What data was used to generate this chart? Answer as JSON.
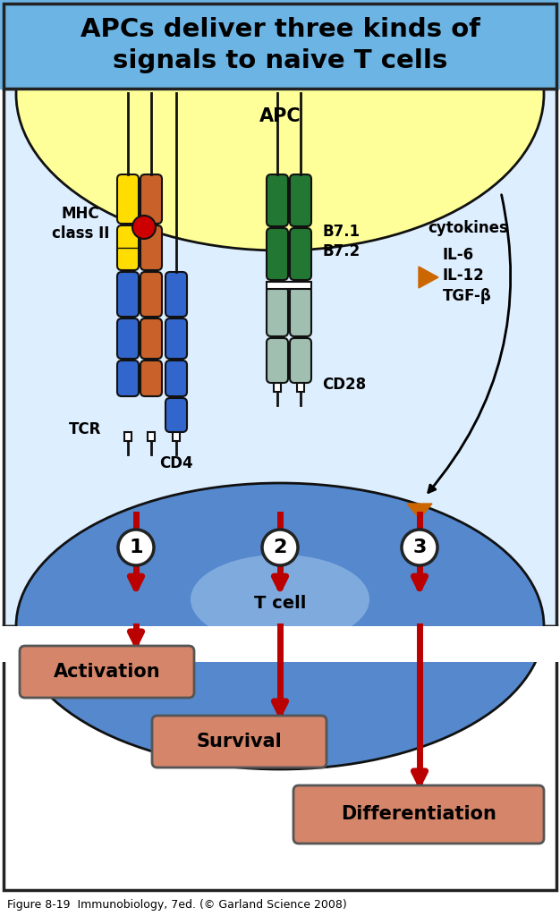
{
  "title_line1": "APCs deliver three kinds of",
  "title_line2": "signals to naive T cells",
  "title_bg": "#6cb4e4",
  "title_fontsize": 21,
  "apc_bg": "#ffff99",
  "middle_bg": "#ddeeff",
  "box_color": "#d4856a",
  "box_labels": [
    "Activation",
    "Survival",
    "Differentiation"
  ],
  "labels": {
    "APC": "APC",
    "TCR": "TCR",
    "MHC": "MHC\nclass II",
    "CD4": "CD4",
    "B7": "B7.1\nB7.2",
    "CD28": "CD28",
    "cytokines": "cytokines",
    "IL6": "IL-6",
    "IL12": "IL-12",
    "TGFB": "TGF-β",
    "Tcell": "T cell"
  },
  "yellow_color": "#ffdd00",
  "blue_color": "#3366cc",
  "blue_dark": "#2255bb",
  "orange_color": "#cc6600",
  "brown_orange": "#c8622a",
  "green_color": "#227733",
  "green_dark": "#115522",
  "lightblue_color": "#99bbaa",
  "red_color": "#bb0000",
  "tcell_blue": "#5588cc",
  "tcell_light": "#aaccee",
  "caption": "Figure 8-19  Immunobiology, 7ed. (© Garland Science 2008)"
}
